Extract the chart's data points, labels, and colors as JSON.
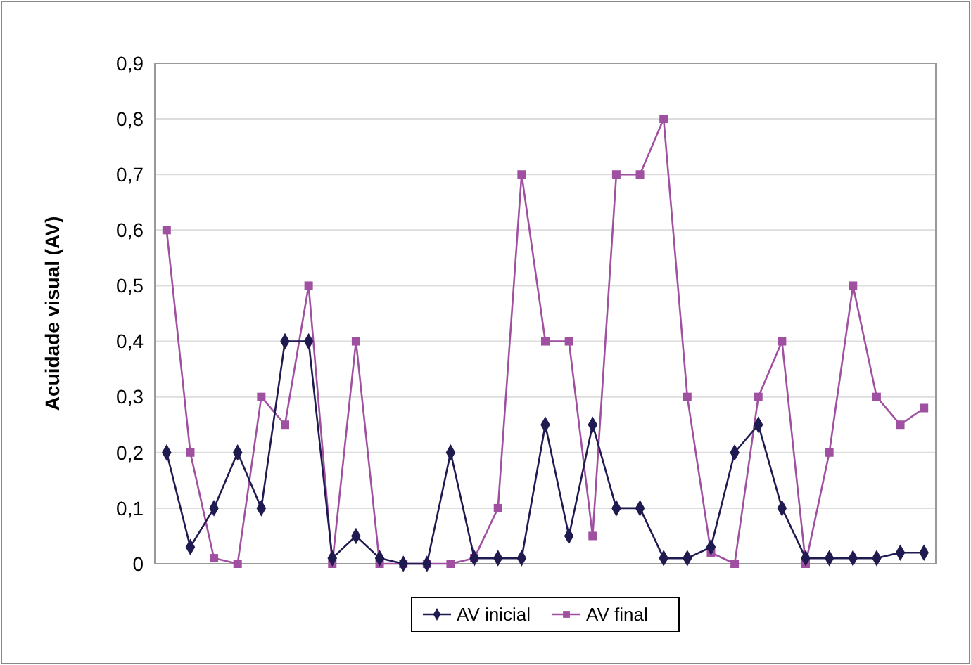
{
  "chart_data": {
    "type": "line",
    "ylabel": "Acuidade visual (AV)",
    "categories": [
      null,
      null,
      null,
      null,
      null,
      null,
      null,
      null,
      null,
      null,
      null,
      null,
      null,
      null,
      null,
      null,
      null,
      null,
      null,
      null,
      null,
      null,
      null,
      null,
      null,
      null,
      null,
      null,
      null,
      null,
      null,
      null,
      null
    ],
    "series": [
      {
        "name": "AV inicial",
        "color": "#1f1a4f",
        "marker": "diamond",
        "values": [
          0.2,
          0.03,
          0.1,
          0.2,
          0.1,
          0.4,
          0.4,
          0.01,
          0.05,
          0.01,
          0,
          0,
          0.2,
          0.01,
          0.01,
          0.01,
          0.25,
          0.05,
          0.25,
          0.1,
          0.1,
          0.01,
          0.01,
          0.03,
          0.2,
          0.25,
          0.1,
          0.01,
          0.01,
          0.01,
          0.01,
          0.02,
          0.02
        ]
      },
      {
        "name": "AV final",
        "color": "#a050a0",
        "marker": "square",
        "values": [
          0.6,
          0.2,
          0.01,
          0,
          0.3,
          0.25,
          0.5,
          0,
          0.4,
          0,
          0,
          0,
          0,
          0.01,
          0.1,
          0.7,
          0.4,
          0.4,
          0.05,
          0.7,
          0.7,
          0.8,
          0.3,
          0.02,
          0,
          0.3,
          0.4,
          0,
          0.2,
          0.5,
          0.3,
          0.25,
          0.28
        ]
      }
    ],
    "ylim": [
      0,
      0.9
    ],
    "yticks": [
      {
        "value": 0,
        "label": "0"
      },
      {
        "value": 0.1,
        "label": "0,1"
      },
      {
        "value": 0.2,
        "label": "0,2"
      },
      {
        "value": 0.3,
        "label": "0,3"
      },
      {
        "value": 0.4,
        "label": "0,4"
      },
      {
        "value": 0.5,
        "label": "0,5"
      },
      {
        "value": 0.6,
        "label": "0,6"
      },
      {
        "value": 0.7,
        "label": "0,7"
      },
      {
        "value": 0.8,
        "label": "0,8"
      },
      {
        "value": 0.9,
        "label": "0,9"
      }
    ],
    "grid": "y",
    "legend": "bottom",
    "line_style": "solid"
  }
}
